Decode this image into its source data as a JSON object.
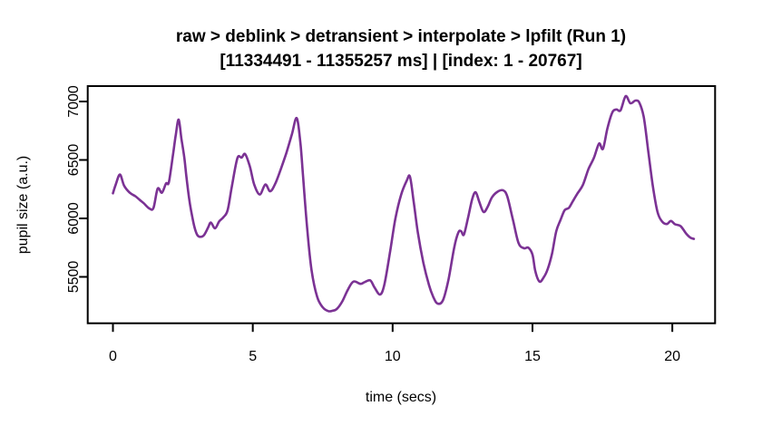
{
  "chart_data": {
    "type": "line",
    "title": "raw > deblink > detransient > interpolate > lpfilt (Run 1)",
    "subtitle": "[11334491 - 11355257 ms] | [index: 1 - 20767]",
    "xlabel": "time (secs)",
    "ylabel": "pupil size (a.u.)",
    "x_ticks": [
      0,
      5,
      10,
      15,
      20
    ],
    "y_ticks": [
      5500,
      6000,
      6500,
      7000
    ],
    "xlim": [
      -0.9,
      21.5
    ],
    "ylim": [
      5090,
      7130
    ],
    "grid": false,
    "legend": "none",
    "line_color": "#7B3294",
    "axis_color": "#000000",
    "background_color": "#FFFFFF",
    "series": [
      {
        "name": "pupil size (a.u.)",
        "x": [
          0,
          0.1,
          0.25,
          0.4,
          0.6,
          0.8,
          0.95,
          1.1,
          1.3,
          1.45,
          1.6,
          1.75,
          1.9,
          2.0,
          2.15,
          2.25,
          2.35,
          2.45,
          2.55,
          2.62,
          2.73,
          2.8,
          2.9,
          3.0,
          3.1,
          3.25,
          3.4,
          3.5,
          3.65,
          3.8,
          3.95,
          4.1,
          4.25,
          4.45,
          4.6,
          4.73,
          4.9,
          5.05,
          5.25,
          5.45,
          5.62,
          5.8,
          6.0,
          6.2,
          6.4,
          6.57,
          6.7,
          6.8,
          6.95,
          7.1,
          7.3,
          7.5,
          7.7,
          7.85,
          8.0,
          8.2,
          8.4,
          8.6,
          8.85,
          9.0,
          9.2,
          9.35,
          9.55,
          9.7,
          9.9,
          10.1,
          10.3,
          10.5,
          10.62,
          10.75,
          10.9,
          11.1,
          11.3,
          11.45,
          11.6,
          11.8,
          12.0,
          12.2,
          12.35,
          12.45,
          12.55,
          12.7,
          12.85,
          12.97,
          13.1,
          13.25,
          13.4,
          13.55,
          13.75,
          13.95,
          14.1,
          14.3,
          14.5,
          14.7,
          14.85,
          15.0,
          15.1,
          15.25,
          15.4,
          15.55,
          15.7,
          15.85,
          16.0,
          16.15,
          16.3,
          16.45,
          16.6,
          16.8,
          17.0,
          17.2,
          17.38,
          17.52,
          17.68,
          17.85,
          18.0,
          18.15,
          18.33,
          18.5,
          18.68,
          18.82,
          18.98,
          19.14,
          19.3,
          19.47,
          19.63,
          19.8,
          19.95,
          20.1,
          20.3,
          20.5,
          20.65,
          20.77
        ],
        "y": [
          6215,
          6290,
          6375,
          6280,
          6220,
          6190,
          6160,
          6130,
          6085,
          6090,
          6255,
          6220,
          6300,
          6310,
          6550,
          6720,
          6845,
          6680,
          6525,
          6370,
          6160,
          6060,
          5940,
          5865,
          5843,
          5855,
          5920,
          5965,
          5915,
          5975,
          6010,
          6070,
          6270,
          6515,
          6520,
          6550,
          6440,
          6290,
          6205,
          6290,
          6232,
          6295,
          6420,
          6560,
          6720,
          6858,
          6650,
          6350,
          5900,
          5560,
          5330,
          5240,
          5207,
          5210,
          5225,
          5290,
          5390,
          5460,
          5440,
          5455,
          5470,
          5410,
          5349,
          5430,
          5700,
          6000,
          6200,
          6320,
          6357,
          6150,
          5880,
          5620,
          5430,
          5330,
          5272,
          5300,
          5480,
          5750,
          5880,
          5890,
          5862,
          6010,
          6170,
          6223,
          6140,
          6055,
          6100,
          6180,
          6228,
          6240,
          6188,
          5990,
          5790,
          5745,
          5750,
          5690,
          5550,
          5460,
          5495,
          5570,
          5700,
          5890,
          5985,
          6070,
          6090,
          6150,
          6210,
          6285,
          6420,
          6520,
          6640,
          6595,
          6770,
          6905,
          6932,
          6925,
          7046,
          6985,
          7008,
          6990,
          6865,
          6575,
          6280,
          6056,
          5975,
          5952,
          5978,
          5950,
          5933,
          5868,
          5835,
          5825
        ]
      }
    ]
  }
}
